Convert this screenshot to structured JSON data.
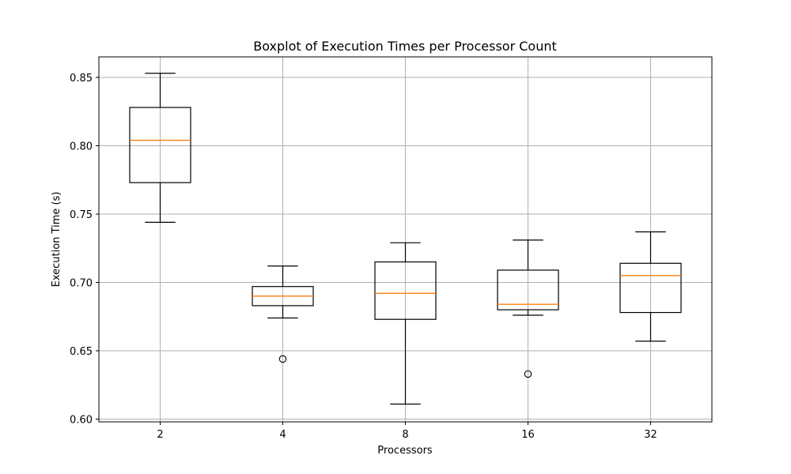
{
  "chart_data": {
    "type": "boxplot",
    "title": "Boxplot of Execution Times per Processor Count",
    "xlabel": "Processors",
    "ylabel": "Execution Time (s)",
    "categories": [
      "2",
      "4",
      "8",
      "16",
      "32"
    ],
    "ylim": [
      0.598,
      0.865
    ],
    "yticks": [
      0.6,
      0.65,
      0.7,
      0.75,
      0.8,
      0.85
    ],
    "ytick_labels": [
      "0.60",
      "0.65",
      "0.70",
      "0.75",
      "0.80",
      "0.85"
    ],
    "grid": true,
    "boxes": [
      {
        "category": "2",
        "whisker_low": 0.744,
        "q1": 0.773,
        "median": 0.804,
        "q3": 0.828,
        "whisker_high": 0.853,
        "outliers": []
      },
      {
        "category": "4",
        "whisker_low": 0.674,
        "q1": 0.683,
        "median": 0.69,
        "q3": 0.697,
        "whisker_high": 0.712,
        "outliers": [
          0.644
        ]
      },
      {
        "category": "8",
        "whisker_low": 0.611,
        "q1": 0.673,
        "median": 0.692,
        "q3": 0.715,
        "whisker_high": 0.729,
        "outliers": []
      },
      {
        "category": "16",
        "whisker_low": 0.676,
        "q1": 0.68,
        "median": 0.684,
        "q3": 0.709,
        "whisker_high": 0.731,
        "outliers": [
          0.633
        ]
      },
      {
        "category": "32",
        "whisker_low": 0.657,
        "q1": 0.678,
        "median": 0.705,
        "q3": 0.714,
        "whisker_high": 0.737,
        "outliers": []
      }
    ],
    "colors": {
      "box": "#000000",
      "median": "#ff7f0e",
      "grid": "#b0b0b0"
    }
  }
}
